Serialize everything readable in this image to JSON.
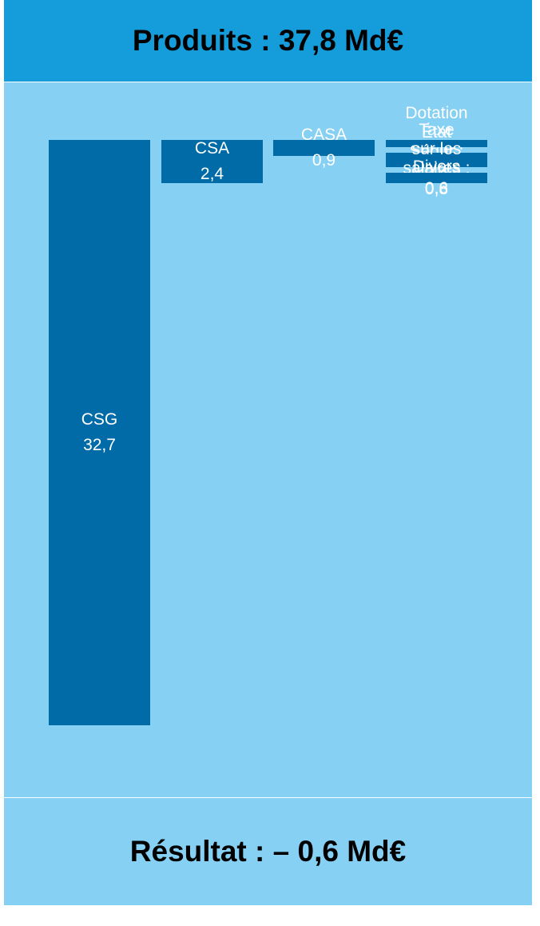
{
  "header": {
    "title": "Produits : 37,8 Md€"
  },
  "footer": {
    "title": "Résultat : – 0,6 Md€"
  },
  "colors": {
    "header_bg": "#159ddb",
    "panel_bg": "#85d0f3",
    "block": "#006ba7",
    "text_block": "#ffffff"
  },
  "chart_data": {
    "type": "table",
    "title": "Produits : 37,8 Md€",
    "unit": "Md€",
    "items": [
      {
        "name": "CSG",
        "label": "CSG",
        "value": 32.7,
        "display": "32,7"
      },
      {
        "name": "CSA",
        "label": "CSA",
        "value": 2.4,
        "display": "2,4"
      },
      {
        "name": "CASA",
        "label": "CASA",
        "value": 0.9,
        "display": "0,9"
      },
      {
        "name": "Dotation État Ségur",
        "label": "Dotation\nÉtat\nSégur :",
        "value": 0.4,
        "display": "0,4"
      },
      {
        "name": "Taxe sur les salaires",
        "label": "Taxe\nsur les\nsalaires :",
        "value": 0.8,
        "display": "0,8"
      },
      {
        "name": "Divers",
        "label": "Divers",
        "value": 0.6,
        "display": "0,6"
      }
    ],
    "result": {
      "label": "Résultat :",
      "value": -0.6,
      "display": "– 0,6 Md€"
    }
  }
}
